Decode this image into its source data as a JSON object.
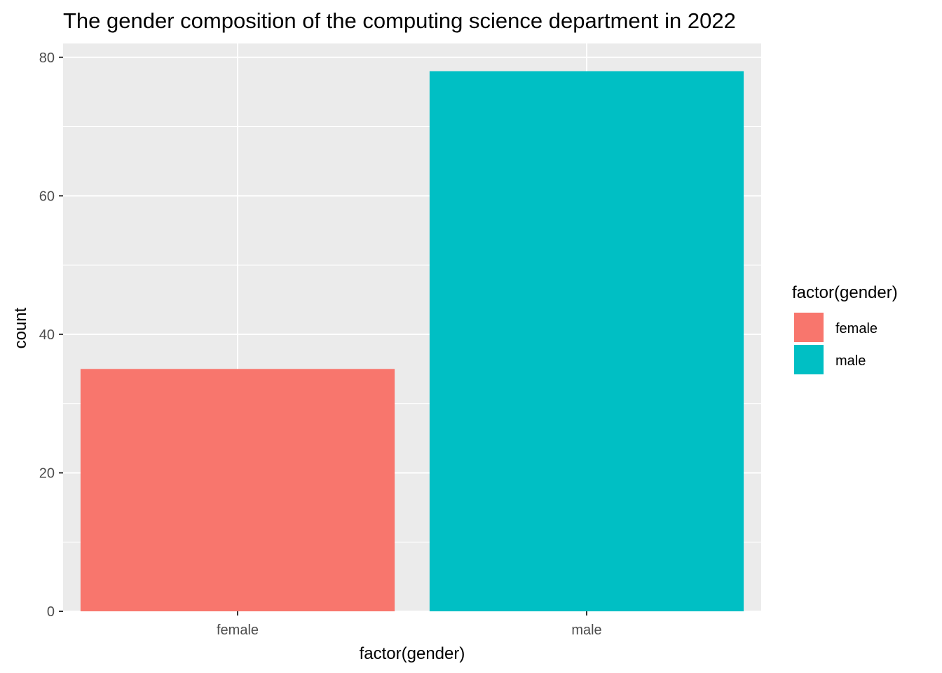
{
  "chart_data": {
    "type": "bar",
    "title": "The gender composition of the computing science department in 2022",
    "xlabel": "factor(gender)",
    "ylabel": "count",
    "categories": [
      "female",
      "male"
    ],
    "values": [
      35,
      78
    ],
    "colors": [
      "#F8766D",
      "#00BFC4"
    ],
    "ylim": [
      0,
      82
    ],
    "yticks": [
      0,
      20,
      40,
      60,
      80
    ],
    "grid": true,
    "panel_background": "#EBEBEB",
    "grid_color": "#FFFFFF",
    "legend": {
      "title": "factor(gender)",
      "position": "right",
      "entries": [
        "female",
        "male"
      ]
    }
  }
}
